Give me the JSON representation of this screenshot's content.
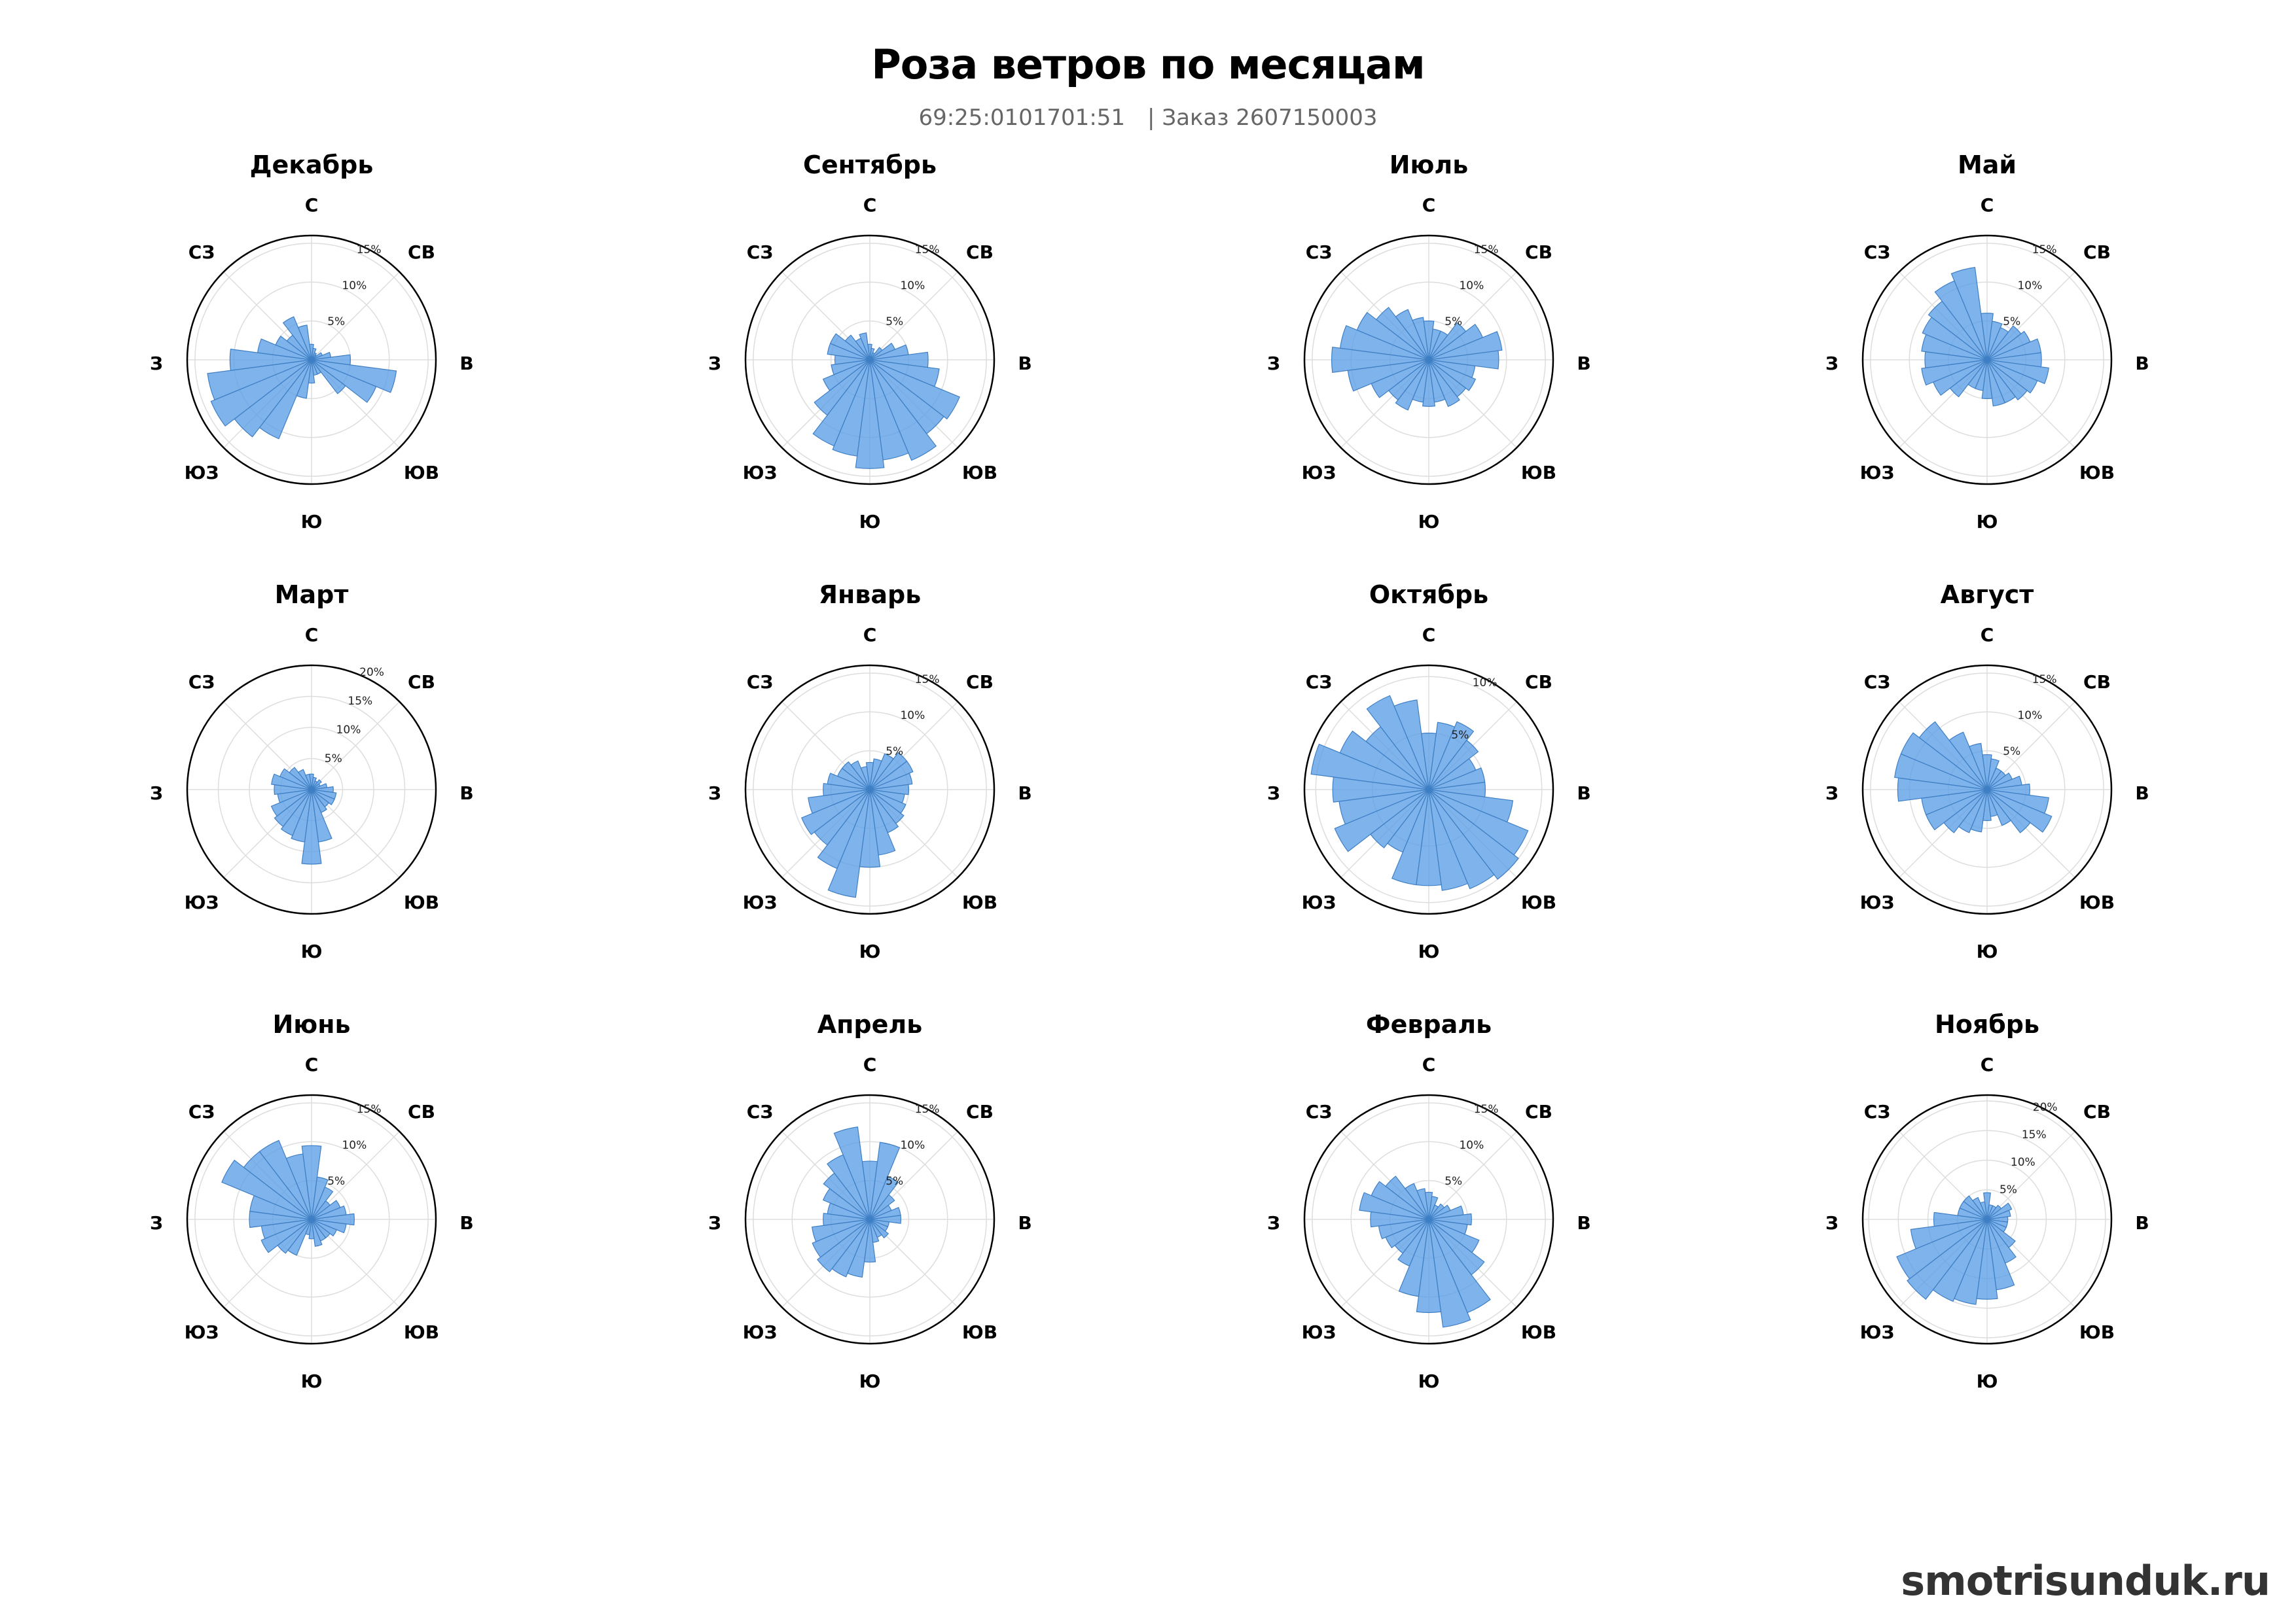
{
  "title": "Роза ветров по месяцам",
  "subtitle": {
    "cadastral": "69:25:0101701:51",
    "separator": "|",
    "order": "Заказ 2607150003"
  },
  "watermark": "smotrisunduk.ru",
  "colors": {
    "bar_fill": "#5b9ee6",
    "bar_stroke": "#3f7fc4",
    "grid": "#dddddd",
    "outer_ring": "#000000"
  },
  "directions": [
    "С",
    "СВ",
    "В",
    "ЮВ",
    "Ю",
    "ЮЗ",
    "З",
    "СЗ"
  ],
  "chart_data": [
    {
      "type": "polar-bar",
      "title": "Декабрь",
      "rmax": 16,
      "ticks": [
        5,
        10,
        15
      ],
      "tick_labels": [
        "5%",
        "10%",
        "15%"
      ],
      "values": [
        2.0,
        1.5,
        1.0,
        0.8,
        1.5,
        2.5,
        5.0,
        11.0,
        9.0,
        5.5,
        2.0,
        2.0,
        3.0,
        5.0,
        11.0,
        12.5,
        14.0,
        13.5,
        10.5,
        7.0,
        5.0,
        4.0,
        6.0,
        4.5
      ]
    },
    {
      "type": "polar-bar",
      "title": "Март",
      "rmax": 20,
      "ticks": [
        5,
        10,
        15,
        20
      ],
      "tick_labels": [
        "5%",
        "10%",
        "15%",
        "20%"
      ],
      "values": [
        2.5,
        2.0,
        1.5,
        2.0,
        1.5,
        2.5,
        3.5,
        4.0,
        4.0,
        3.5,
        4.0,
        8.5,
        12.0,
        8.5,
        8.0,
        7.5,
        7.0,
        5.5,
        6.0,
        6.5,
        5.5,
        4.5,
        3.5,
        2.5
      ]
    },
    {
      "type": "polar-bar",
      "title": "Июнь",
      "rmax": 16,
      "ticks": [
        5,
        10,
        15
      ],
      "tick_labels": [
        "5%",
        "10%",
        "15%"
      ],
      "values": [
        9.5,
        5.5,
        4.5,
        3.0,
        4.0,
        4.5,
        5.5,
        4.5,
        3.5,
        3.0,
        3.0,
        3.5,
        2.5,
        2.0,
        5.0,
        5.5,
        7.0,
        6.5,
        8.0,
        8.0,
        12.5,
        11.0,
        11.0,
        8.5
      ]
    },
    {
      "type": "polar-bar",
      "title": "Сентябрь",
      "rmax": 16,
      "ticks": [
        5,
        10,
        15
      ],
      "tick_labels": [
        "5%",
        "10%",
        "15%"
      ],
      "values": [
        2.0,
        1.5,
        1.0,
        2.0,
        3.5,
        5.0,
        7.5,
        9.0,
        12.5,
        12.0,
        14.0,
        13.0,
        14.0,
        12.5,
        12.0,
        9.0,
        6.5,
        5.0,
        4.5,
        5.5,
        5.5,
        4.0,
        3.0,
        3.5
      ]
    },
    {
      "type": "polar-bar",
      "title": "Январь",
      "rmax": 16,
      "ticks": [
        5,
        10,
        15
      ],
      "tick_labels": [
        "5%",
        "10%",
        "15%"
      ],
      "values": [
        3.5,
        4.0,
        5.0,
        6.0,
        6.0,
        5.5,
        5.0,
        4.5,
        5.0,
        5.5,
        6.0,
        8.5,
        10.0,
        14.0,
        11.0,
        9.0,
        9.5,
        8.0,
        6.0,
        5.5,
        4.5,
        4.5,
        4.0,
        3.0
      ]
    },
    {
      "type": "polar-bar",
      "title": "Апрель",
      "rmax": 16,
      "ticks": [
        5,
        10,
        15
      ],
      "tick_labels": [
        "5%",
        "10%",
        "15%"
      ],
      "values": [
        7.5,
        10.0,
        6.0,
        4.0,
        3.0,
        4.0,
        4.0,
        2.5,
        2.5,
        3.0,
        2.5,
        3.0,
        5.5,
        7.5,
        8.0,
        8.5,
        8.0,
        7.5,
        6.0,
        5.5,
        6.5,
        7.5,
        9.0,
        12.0
      ]
    },
    {
      "type": "polar-bar",
      "title": "Июль",
      "rmax": 16,
      "ticks": [
        5,
        10,
        15
      ],
      "tick_labels": [
        "5%",
        "10%",
        "15%"
      ],
      "values": [
        5.0,
        4.0,
        4.0,
        6.0,
        7.5,
        9.5,
        9.0,
        6.0,
        6.5,
        6.0,
        6.5,
        5.5,
        6.0,
        5.5,
        7.0,
        6.5,
        8.0,
        10.5,
        12.5,
        11.5,
        10.0,
        8.5,
        7.0,
        5.5
      ]
    },
    {
      "type": "polar-bar",
      "title": "Октябрь",
      "rmax": 11,
      "ticks": [
        5,
        10
      ],
      "tick_labels": [
        "5%",
        "10%"
      ],
      "values": [
        5.0,
        6.0,
        6.5,
        5.5,
        4.5,
        5.0,
        5.0,
        7.5,
        9.5,
        10.0,
        9.5,
        9.0,
        8.5,
        8.5,
        6.0,
        6.5,
        9.0,
        8.0,
        8.5,
        10.5,
        8.5,
        7.0,
        9.0,
        8.0
      ]
    },
    {
      "type": "polar-bar",
      "title": "Февраль",
      "rmax": 16,
      "ticks": [
        5,
        10,
        15
      ],
      "tick_labels": [
        "5%",
        "10%",
        "15%"
      ],
      "values": [
        3.5,
        3.0,
        2.0,
        2.5,
        3.0,
        4.5,
        5.5,
        5.0,
        7.0,
        9.0,
        13.0,
        14.0,
        12.0,
        10.0,
        6.5,
        5.5,
        6.0,
        6.5,
        7.5,
        9.0,
        8.0,
        7.0,
        5.0,
        4.0
      ]
    },
    {
      "type": "polar-bar",
      "title": "Май",
      "rmax": 16,
      "ticks": [
        5,
        10,
        15
      ],
      "tick_labels": [
        "5%",
        "10%",
        "15%"
      ],
      "values": [
        6.0,
        5.0,
        4.5,
        5.5,
        6.0,
        7.0,
        7.0,
        8.0,
        7.0,
        6.5,
        6.0,
        6.0,
        5.0,
        4.0,
        4.0,
        6.0,
        7.5,
        8.5,
        8.0,
        8.5,
        9.0,
        9.5,
        11.0,
        12.0
      ]
    },
    {
      "type": "polar-bar",
      "title": "Август",
      "rmax": 16,
      "ticks": [
        5,
        10,
        15
      ],
      "tick_labels": [
        "5%",
        "10%",
        "15%"
      ],
      "values": [
        4.5,
        4.0,
        3.0,
        3.0,
        3.5,
        4.5,
        5.5,
        8.0,
        9.0,
        7.0,
        5.0,
        3.5,
        4.0,
        5.5,
        6.0,
        7.0,
        8.5,
        8.5,
        11.5,
        12.0,
        12.0,
        11.0,
        8.0,
        6.0
      ]
    },
    {
      "type": "polar-bar",
      "title": "Ноябрь",
      "rmax": 21,
      "ticks": [
        5,
        10,
        15,
        20
      ],
      "tick_labels": [
        "5%",
        "10%",
        "15%",
        "20%"
      ],
      "values": [
        4.5,
        2.5,
        2.5,
        3.0,
        4.5,
        4.0,
        3.5,
        3.5,
        3.5,
        6.0,
        8.0,
        12.0,
        13.5,
        14.5,
        15.0,
        17.0,
        16.5,
        13.0,
        9.0,
        5.0,
        5.0,
        5.0,
        4.0,
        3.0
      ]
    }
  ]
}
